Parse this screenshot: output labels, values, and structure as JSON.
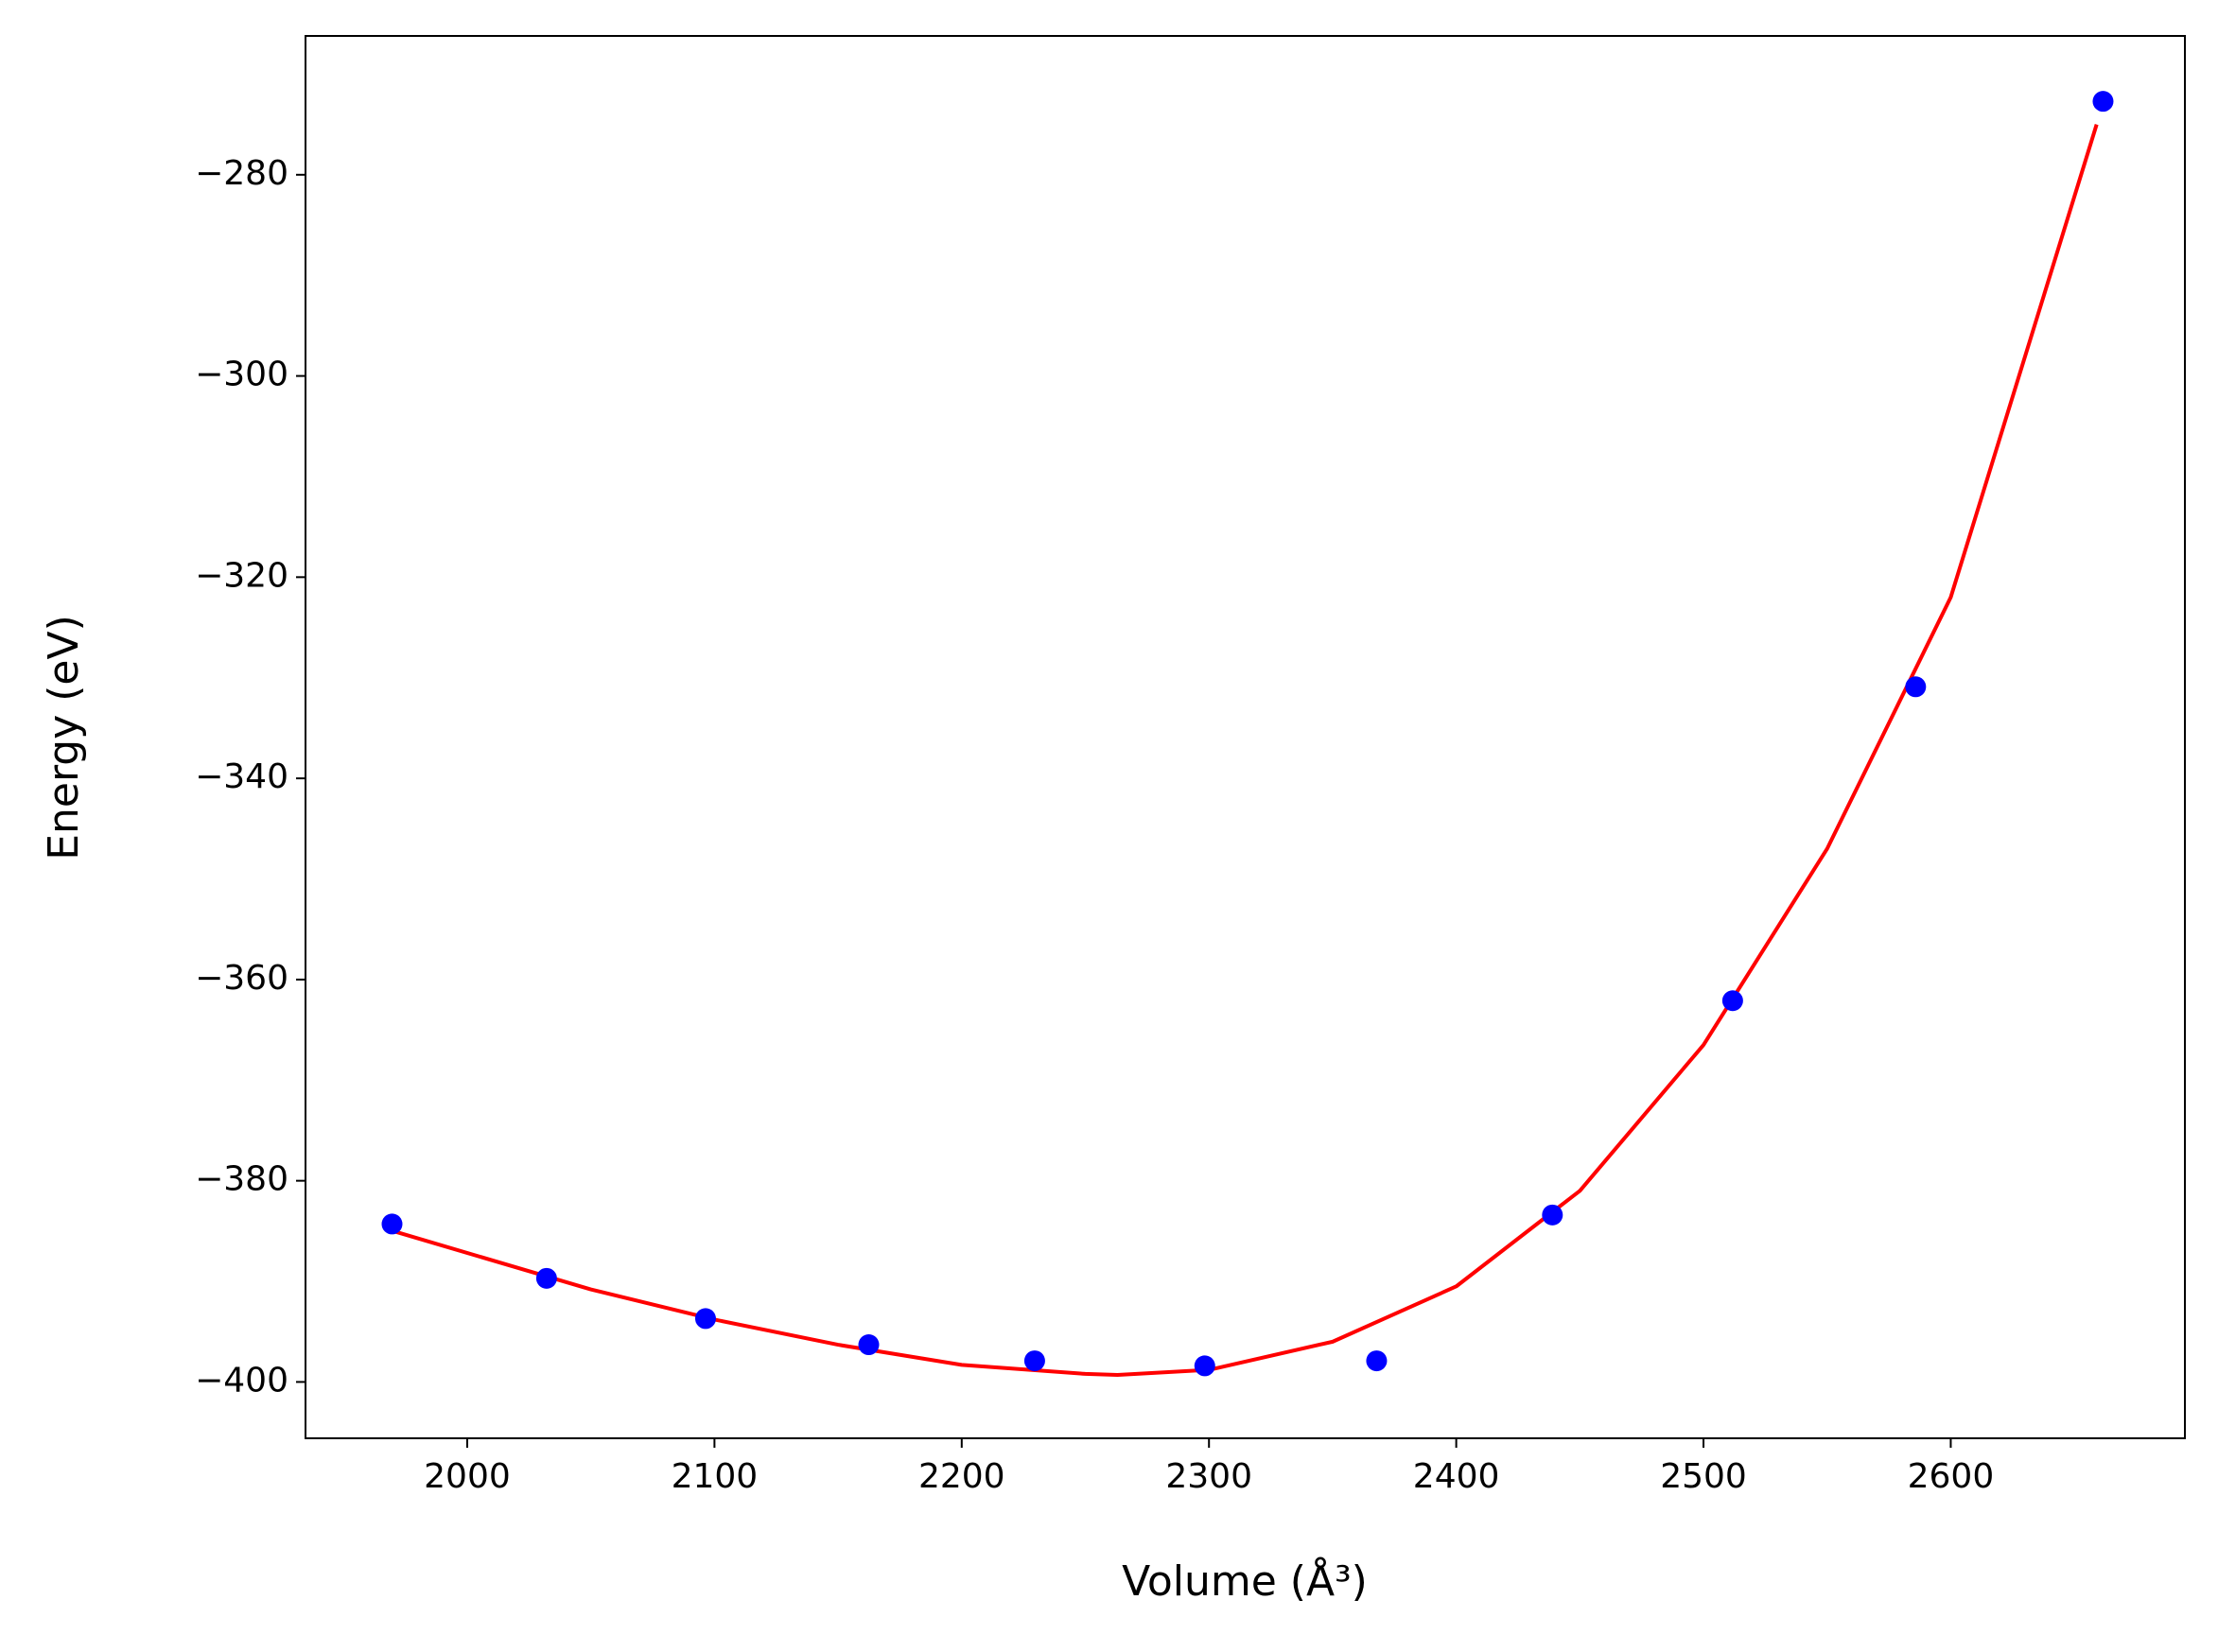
{
  "chart_data": {
    "type": "scatter-fit",
    "xlabel": "Volume (Å³)",
    "ylabel": "Energy (eV)",
    "xlim": [
      1934.6,
      2694.7
    ],
    "ylim": [
      -405.6,
      -266.2
    ],
    "xticks": [
      2000,
      2100,
      2200,
      2300,
      2400,
      2500,
      2600
    ],
    "yticks": [
      {
        "value": -400,
        "label": "−400"
      },
      {
        "value": -380,
        "label": "−380"
      },
      {
        "value": -360,
        "label": "−360"
      },
      {
        "value": -340,
        "label": "−340"
      },
      {
        "value": -320,
        "label": "−320"
      },
      {
        "value": -300,
        "label": "−300"
      },
      {
        "value": -280,
        "label": "−280"
      }
    ],
    "series": [
      {
        "style": "line",
        "color": "#ff0000",
        "x": [
          1970,
          2050,
          2100,
          2150,
          2200,
          2250,
          2263,
          2300,
          2350,
          2400,
          2450,
          2500,
          2550,
          2600,
          2659
        ],
        "values": [
          -385.0,
          -390.8,
          -393.8,
          -396.3,
          -398.3,
          -399.2,
          -399.3,
          -398.8,
          -396.0,
          -390.5,
          -381.0,
          -366.5,
          -347.0,
          -322.0,
          -275.0
        ]
      },
      {
        "style": "markers",
        "color": "#0000ff",
        "x": [
          1969.6,
          2032.1,
          2096.4,
          2162.4,
          2229.5,
          2298.3,
          2367.8,
          2438.9,
          2511.8,
          2585.8,
          2661.6
        ],
        "values": [
          -384.3,
          -389.7,
          -393.7,
          -396.3,
          -397.9,
          -398.4,
          -397.9,
          -383.4,
          -362.1,
          -330.9,
          -272.7
        ]
      }
    ]
  }
}
